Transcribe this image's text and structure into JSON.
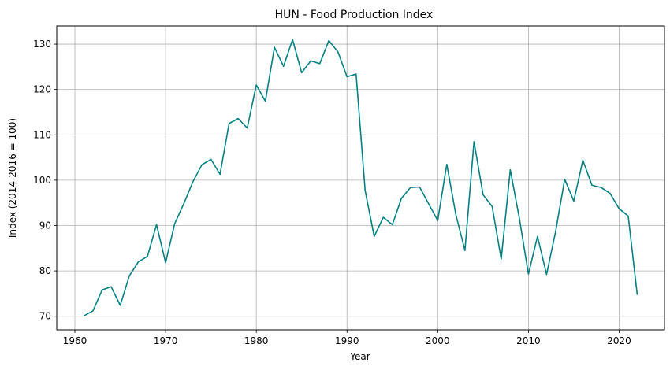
{
  "chart_data": {
    "type": "line",
    "title": "HUN - Food Production Index",
    "xlabel": "Year",
    "ylabel": "Index (2014-2016 = 100)",
    "xlim": [
      1958,
      2025
    ],
    "ylim": [
      67,
      134
    ],
    "xticks": [
      1960,
      1970,
      1980,
      1990,
      2000,
      2010,
      2020
    ],
    "yticks": [
      70,
      80,
      90,
      100,
      110,
      120,
      130
    ],
    "grid": true,
    "line_color": "#008080",
    "series": [
      {
        "x": [
          1961,
          1962,
          1963,
          1964,
          1965,
          1966,
          1967,
          1968,
          1969,
          1970,
          1971,
          1972,
          1973,
          1974,
          1975,
          1976,
          1977,
          1978,
          1979,
          1980,
          1981,
          1982,
          1983,
          1984,
          1985,
          1986,
          1987,
          1988,
          1989,
          1990,
          1991,
          1992,
          1993,
          1994,
          1995,
          1996,
          1997,
          1998,
          1999,
          2000,
          2001,
          2002,
          2003,
          2004,
          2005,
          2006,
          2007,
          2008,
          2009,
          2010,
          2011,
          2012,
          2013,
          2014,
          2015,
          2016,
          2017,
          2018,
          2019,
          2020,
          2021,
          2022
        ],
        "values": [
          70.1,
          71.2,
          75.8,
          76.5,
          72.4,
          78.9,
          82.0,
          83.2,
          90.2,
          81.8,
          90.4,
          94.8,
          99.6,
          103.4,
          104.6,
          101.3,
          112.5,
          113.6,
          111.5,
          121.0,
          117.4,
          129.3,
          125.1,
          131.0,
          123.7,
          126.3,
          125.7,
          130.8,
          128.3,
          122.8,
          123.4,
          97.7,
          87.6,
          91.8,
          90.2,
          96.0,
          98.4,
          98.5,
          94.8,
          91.1,
          103.5,
          92.4,
          84.5,
          108.5,
          96.8,
          94.2,
          82.6,
          102.3,
          91.6,
          79.3,
          87.6,
          79.2,
          88.7,
          100.2,
          95.4,
          104.4,
          98.9,
          98.4,
          97.1,
          93.7,
          92.1,
          74.7
        ]
      }
    ]
  }
}
